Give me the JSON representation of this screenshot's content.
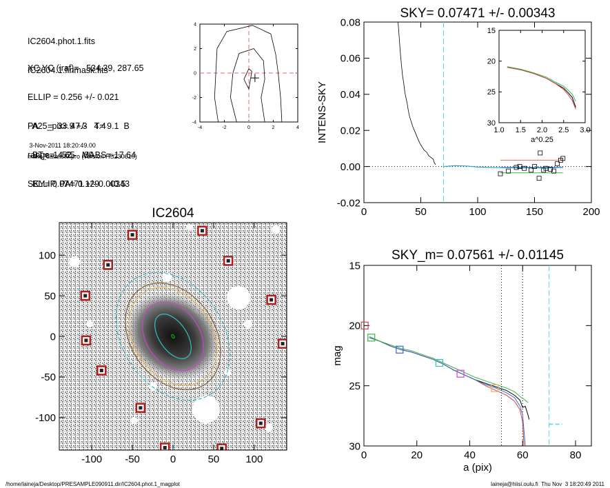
{
  "info": {
    "lines_a": [
      "IC2604.phot.1.fits",
      "IC2604.1.finmask.fits"
    ],
    "lines_b": [
      "XC,YC (iraf)=   534.39, 287.65",
      "ELLIP = 0.256 +/- 0.021",
      "PA    =  33.9 +/-   4.4",
      "range=   52.-   60.",
      "SKY= 0.07471 +/- 0.00343"
    ],
    "lines_c": [
      "  A25_pix= 47.3   T= 9.1  B",
      "  BT=  14.65   MABS=-17.64",
      "  ELLIP, PA= 0.129    40.5"
    ],
    "date": " 3-Nov-2011 18:20:49.00",
    "program": "make_datalist0.pro (version HS230610)"
  },
  "footer": {
    "left": "/home/laineja/Desktop/PRESAMPLE090911.dir/IC2604.phot.1_magplot",
    "right": "laineja@hiisi.oulu.fi  Thu Nov  3 18:20:49 2011"
  },
  "chart_data": [
    {
      "type": "line",
      "panel": "center-contour",
      "title": "",
      "xlim": [
        -4,
        4
      ],
      "ylim": [
        -4,
        4
      ],
      "xticks": [
        "-4",
        "-2",
        "0",
        "2",
        "4"
      ],
      "yticks": [
        "-4",
        "-2",
        "0",
        "2",
        "4"
      ],
      "series": [
        {
          "values": [
            [
              -2.5,
              -4
            ],
            [
              -2.8,
              -2
            ],
            [
              -2.7,
              0
            ],
            [
              -2.6,
              2
            ],
            [
              -1.8,
              3.4
            ],
            [
              0.3,
              3.9
            ],
            [
              1.8,
              3.2
            ],
            [
              2.2,
              1.5
            ],
            [
              2.4,
              0
            ],
            [
              2.6,
              -2
            ],
            [
              2.7,
              -4
            ]
          ]
        },
        {
          "values": [
            [
              -1.0,
              -4
            ],
            [
              -1.5,
              -2
            ],
            [
              -1.3,
              0
            ],
            [
              -0.8,
              1.6
            ],
            [
              0.4,
              2
            ],
            [
              1.2,
              1.0
            ],
            [
              1.3,
              -0.5
            ],
            [
              1.0,
              -2
            ],
            [
              1.3,
              -4
            ]
          ]
        },
        {
          "values": [
            [
              0,
              0.35
            ],
            [
              -0.4,
              -0.5
            ],
            [
              0,
              -1.3
            ],
            [
              0.25,
              0.15
            ],
            [
              0,
              0.35
            ]
          ]
        }
      ],
      "center_marker": [
        0.5,
        -0.4
      ],
      "dashed_lines": {
        "x": 0,
        "y": 0,
        "color": "#ee6666"
      }
    },
    {
      "type": "line",
      "panel": "intens-sky",
      "title": "SKY= 0.07471 +/- 0.00343",
      "ylabel": "INTENS-SKY",
      "xlim": [
        0,
        200
      ],
      "ylim": [
        -0.02,
        0.08
      ],
      "xticks": [
        "0",
        "50",
        "100",
        "150",
        "200"
      ],
      "yticks": [
        "-0.02",
        "0.00",
        "0.02",
        "0.04",
        "0.06",
        "0.08"
      ],
      "sky_marker_x": 70,
      "profile": [
        [
          30,
          0.08
        ],
        [
          31,
          0.072
        ],
        [
          32,
          0.063
        ],
        [
          33,
          0.056
        ],
        [
          34,
          0.05
        ],
        [
          35,
          0.046
        ],
        [
          36,
          0.041
        ],
        [
          37,
          0.038
        ],
        [
          38,
          0.035
        ],
        [
          39,
          0.031
        ],
        [
          40,
          0.028
        ],
        [
          41,
          0.026
        ],
        [
          43,
          0.022
        ],
        [
          45,
          0.019
        ],
        [
          47,
          0.016
        ],
        [
          49,
          0.013
        ],
        [
          51,
          0.011
        ],
        [
          53,
          0.009
        ],
        [
          55,
          0.008
        ],
        [
          57,
          0.006
        ],
        [
          59,
          0.005
        ],
        [
          61,
          0.004
        ],
        [
          62,
          0.002
        ],
        [
          63,
          0.001
        ]
      ],
      "sky_region": [
        [
          70,
          0.0
        ],
        [
          80,
          0.0005
        ],
        [
          90,
          0.0003
        ],
        [
          100,
          -0.0003
        ],
        [
          110,
          -0.0005
        ],
        [
          120,
          -0.0006
        ],
        [
          130,
          -0.0007
        ],
        [
          140,
          -0.0008
        ],
        [
          150,
          -0.0006
        ],
        [
          160,
          -0.0009
        ],
        [
          170,
          -0.0006
        ],
        [
          175,
          -0.0004
        ]
      ],
      "boxes": [
        [
          120,
          -0.004
        ],
        [
          127,
          -0.0025
        ],
        [
          134,
          -0.0005
        ],
        [
          137,
          0.0
        ],
        [
          141,
          -0.001
        ],
        [
          147,
          -0.002
        ],
        [
          150,
          0.0
        ],
        [
          154,
          -0.0065
        ],
        [
          158,
          -0.002
        ],
        [
          160,
          -0.001
        ],
        [
          164,
          -0.0015
        ],
        [
          167,
          -0.0025
        ],
        [
          170,
          0.0015
        ],
        [
          173,
          0.0035
        ],
        [
          175,
          0.0045
        ],
        [
          155,
          0.0075
        ]
      ],
      "level_lines": [
        {
          "color": "#e06b5c",
          "y": 0.0035,
          "x": [
            120,
            175
          ]
        },
        {
          "color": "#33b34a",
          "y": -0.0035,
          "x": [
            120,
            175
          ]
        },
        {
          "color": "#3a64c9",
          "y": -0.0005,
          "x": [
            120,
            175
          ]
        }
      ]
    },
    {
      "type": "line",
      "panel": "inset",
      "xlabel": "a^0.25",
      "xlim": [
        1.0,
        3.0
      ],
      "ylim": [
        30,
        15
      ],
      "xticks": [
        "1.0",
        "1.5",
        "2.0",
        "2.5",
        "3.0"
      ],
      "yticks": [
        "15",
        "20",
        "25",
        "30"
      ],
      "series": [
        {
          "color": "#000000",
          "values": [
            [
              1.19,
              21.0
            ],
            [
              1.5,
              21.4
            ],
            [
              1.8,
              22.0
            ],
            [
              2.1,
              22.8
            ],
            [
              2.3,
              23.6
            ],
            [
              2.5,
              24.4
            ],
            [
              2.6,
              25.1
            ],
            [
              2.7,
              25.9
            ],
            [
              2.78,
              27.5
            ]
          ]
        },
        {
          "color": "#d94343",
          "values": [
            [
              1.19,
              21.0
            ],
            [
              1.5,
              21.4
            ],
            [
              1.8,
              22.0
            ],
            [
              2.1,
              22.8
            ],
            [
              2.3,
              23.6
            ],
            [
              2.5,
              24.6
            ],
            [
              2.6,
              25.4
            ],
            [
              2.7,
              26.4
            ],
            [
              2.78,
              27.8
            ]
          ]
        },
        {
          "color": "#3ab24a",
          "values": [
            [
              1.19,
              20.9
            ],
            [
              1.5,
              21.3
            ],
            [
              1.8,
              21.9
            ],
            [
              2.1,
              22.6
            ],
            [
              2.3,
              23.4
            ],
            [
              2.5,
              24.1
            ],
            [
              2.6,
              24.7
            ],
            [
              2.7,
              25.4
            ],
            [
              2.78,
              26.5
            ]
          ]
        }
      ]
    },
    {
      "type": "image",
      "panel": "galaxy-image",
      "title": "IC2604",
      "xlim": [
        -140,
        140
      ],
      "ylim": [
        -140,
        140
      ],
      "xticks": [
        "-100",
        "-50",
        "0",
        "50",
        "100"
      ],
      "yticks": [
        "-100",
        "-50",
        "0",
        "50",
        "100"
      ],
      "masked_stars": [
        [
          -50,
          125
        ],
        [
          36,
          130
        ],
        [
          -80,
          88
        ],
        [
          68,
          93
        ],
        [
          -108,
          50
        ],
        [
          121,
          45
        ],
        [
          -107,
          -5
        ],
        [
          135,
          -9
        ],
        [
          -88,
          -42
        ],
        [
          -40,
          -88
        ],
        [
          108,
          -107
        ],
        [
          -10,
          -137
        ],
        [
          60,
          -138
        ]
      ],
      "ellipses": [
        {
          "color": "#33b4c9",
          "a": 62,
          "b": 85,
          "rot": 34,
          "dash": true
        },
        {
          "color": "#8b5a2b",
          "a": 52,
          "b": 71,
          "rot": 34,
          "dash": false
        },
        {
          "color": "#e6b25a",
          "a": 48,
          "b": 65,
          "rot": 34,
          "dash": false
        },
        {
          "color": "#cc44cc",
          "a": 33,
          "b": 46,
          "rot": 34,
          "dash": false
        },
        {
          "color": "#2fc4c0",
          "a": 17,
          "b": 31,
          "rot": 34,
          "dash": false
        },
        {
          "color": "#1ca11c",
          "a": 1.5,
          "b": 2.5,
          "rot": 34,
          "dash": false
        }
      ]
    },
    {
      "type": "line",
      "panel": "mag-profile",
      "title": "SKY_m=  0.07561 +/- 0.01145",
      "xlabel": "a (pix)",
      "ylabel": "mag",
      "xlim": [
        0,
        86
      ],
      "ylim": [
        30,
        15
      ],
      "xticks": [
        "0",
        "20",
        "40",
        "60",
        "80"
      ],
      "yticks": [
        "15",
        "20",
        "25",
        "30"
      ],
      "vlines_dotted": [
        52,
        60
      ],
      "vline_dashed": 70,
      "sky_dash_segment": {
        "x": [
          70,
          75
        ],
        "y": 28.2
      },
      "series": [
        {
          "color": "#000000",
          "values": [
            [
              2,
              21.0
            ],
            [
              6,
              21.3
            ],
            [
              10,
              21.7
            ],
            [
              14,
              22.0
            ],
            [
              18,
              22.2
            ],
            [
              22,
              22.5
            ],
            [
              26,
              22.8
            ],
            [
              30,
              23.2
            ],
            [
              34,
              23.7
            ],
            [
              38,
              24.1
            ],
            [
              42,
              24.5
            ],
            [
              46,
              24.8
            ],
            [
              50,
              25.1
            ],
            [
              54,
              25.4
            ],
            [
              57,
              25.8
            ],
            [
              59,
              26.2
            ],
            [
              60,
              26.8
            ],
            [
              61,
              26.7
            ],
            [
              62,
              27.4
            ],
            [
              62.5,
              27.8
            ]
          ]
        },
        {
          "color": "#d94343",
          "values": [
            [
              2,
              21.0
            ],
            [
              6,
              21.3
            ],
            [
              10,
              21.7
            ],
            [
              14,
              22.0
            ],
            [
              18,
              22.2
            ],
            [
              22,
              22.5
            ],
            [
              26,
              22.8
            ],
            [
              30,
              23.2
            ],
            [
              34,
              23.7
            ],
            [
              38,
              24.1
            ],
            [
              42,
              24.5
            ],
            [
              46,
              25.0
            ],
            [
              50,
              25.4
            ],
            [
              54,
              25.8
            ],
            [
              57,
              26.3
            ],
            [
              59,
              27.0
            ],
            [
              60,
              28.0
            ],
            [
              60.5,
              30
            ]
          ]
        },
        {
          "color": "#3a64c9",
          "values": [
            [
              2,
              21.0
            ],
            [
              6,
              21.3
            ],
            [
              10,
              21.7
            ],
            [
              14,
              22.0
            ],
            [
              18,
              22.2
            ],
            [
              22,
              22.5
            ],
            [
              26,
              22.8
            ],
            [
              30,
              23.2
            ],
            [
              34,
              23.7
            ],
            [
              38,
              24.1
            ],
            [
              42,
              24.5
            ],
            [
              46,
              24.9
            ],
            [
              50,
              25.2
            ],
            [
              54,
              25.6
            ],
            [
              57,
              26.0
            ],
            [
              59,
              26.7
            ],
            [
              60,
              27.4
            ],
            [
              61,
              30
            ]
          ]
        },
        {
          "color": "#3ab24a",
          "values": [
            [
              2,
              20.9
            ],
            [
              6,
              21.3
            ],
            [
              10,
              21.6
            ],
            [
              14,
              21.9
            ],
            [
              18,
              22.1
            ],
            [
              22,
              22.4
            ],
            [
              26,
              22.7
            ],
            [
              30,
              23.1
            ],
            [
              34,
              23.5
            ],
            [
              38,
              23.9
            ],
            [
              42,
              24.3
            ],
            [
              46,
              24.6
            ],
            [
              50,
              24.9
            ],
            [
              54,
              25.2
            ],
            [
              57,
              25.5
            ],
            [
              59,
              25.9
            ],
            [
              61,
              26.2
            ],
            [
              62,
              26.4
            ]
          ]
        }
      ],
      "markers": [
        {
          "color": "#d94343",
          "shape": "square",
          "x": 0.3,
          "y": 20.0
        },
        {
          "color": "#3ab24a",
          "shape": "square",
          "x": 2.8,
          "y": 21.0
        },
        {
          "color": "#3a64c9",
          "shape": "square",
          "x": 13.5,
          "y": 22.0
        },
        {
          "color": "#2fc4c0",
          "shape": "square",
          "x": 28.5,
          "y": 23.1
        },
        {
          "color": "#cc44cc",
          "shape": "square",
          "x": 36.5,
          "y": 24.0
        },
        {
          "color": "#e6b25a",
          "shape": "square",
          "x": 49.5,
          "y": 25.2
        }
      ]
    }
  ]
}
